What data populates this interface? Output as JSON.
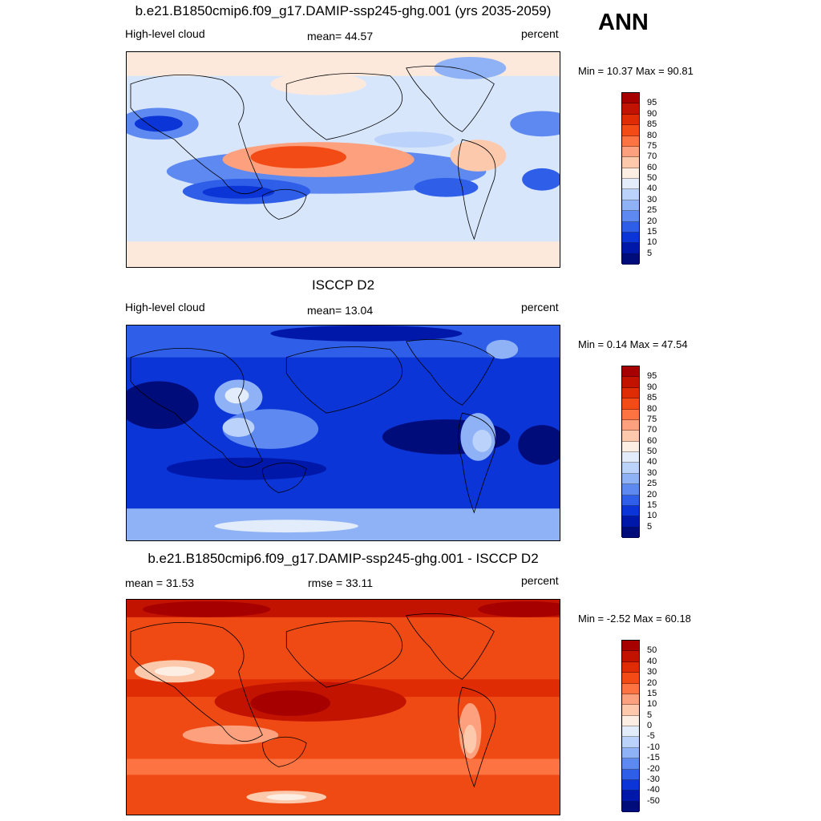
{
  "season": "ANN",
  "palette_pos": [
    "#a60000",
    "#c21200",
    "#e02c05",
    "#f34b15",
    "#fd7342",
    "#fda07e",
    "#fdc9ac",
    "#fdeee3",
    "#e2ecfb",
    "#bbd2fa",
    "#8fb2f6",
    "#5e89f1",
    "#2f5ee8",
    "#0b35d6",
    "#0018aa",
    "#000c7a"
  ],
  "panels": [
    {
      "title": "b.e21.B1850cmip6.f09_g17.DAMIP-ssp245-ghg.001 (yrs 2035-2059)",
      "left_label": "High-level cloud",
      "center_label": "mean=  44.57",
      "right_label": "percent",
      "minmax": "Min =  10.37 Max =  90.81",
      "colorbar_ticks": [
        "95",
        "90",
        "85",
        "80",
        "75",
        "70",
        "60",
        "50",
        "40",
        "30",
        "25",
        "20",
        "15",
        "10",
        "5"
      ],
      "colorbar_colors": [
        "#a60000",
        "#c21200",
        "#e02c05",
        "#f34b15",
        "#fd7342",
        "#fda07e",
        "#fdc9ac",
        "#fdeee3",
        "#e2ecfb",
        "#bbd2fa",
        "#8fb2f6",
        "#5e89f1",
        "#2f5ee8",
        "#0b35d6",
        "#0018aa",
        "#000c7a"
      ],
      "background_color": "#d7e6fb"
    },
    {
      "title": "ISCCP D2",
      "left_label": "High-level cloud",
      "center_label": "mean=  13.04",
      "right_label": "percent",
      "minmax": "Min =   0.14 Max =  47.54",
      "colorbar_ticks": [
        "95",
        "90",
        "85",
        "80",
        "75",
        "70",
        "60",
        "50",
        "40",
        "30",
        "25",
        "20",
        "15",
        "10",
        "5"
      ],
      "colorbar_colors": [
        "#a60000",
        "#c21200",
        "#e02c05",
        "#f34b15",
        "#fd7342",
        "#fda07e",
        "#fdc9ac",
        "#fdeee3",
        "#e2ecfb",
        "#bbd2fa",
        "#8fb2f6",
        "#5e89f1",
        "#2f5ee8",
        "#0b35d6",
        "#0018aa",
        "#000c7a"
      ],
      "background_color": "#0b35d6"
    },
    {
      "title": "b.e21.B1850cmip6.f09_g17.DAMIP-ssp245-ghg.001 - ISCCP D2",
      "left_label": "mean =  31.53",
      "center_label": "rmse =  33.11",
      "right_label": "percent",
      "minmax": "Min =  -2.52 Max =  60.18",
      "colorbar_ticks": [
        "50",
        "40",
        "30",
        "20",
        "15",
        "10",
        "5",
        "0",
        "-5",
        "-10",
        "-15",
        "-20",
        "-30",
        "-40",
        "-50"
      ],
      "colorbar_colors": [
        "#a60000",
        "#c21200",
        "#e02c05",
        "#f34b15",
        "#fd7342",
        "#fda07e",
        "#fdc9ac",
        "#fdeee3",
        "#e2ecfb",
        "#bbd2fa",
        "#8fb2f6",
        "#5e89f1",
        "#2f5ee8",
        "#0b35d6",
        "#0018aa",
        "#000c7a"
      ],
      "background_color": "#ef4a14"
    }
  ]
}
